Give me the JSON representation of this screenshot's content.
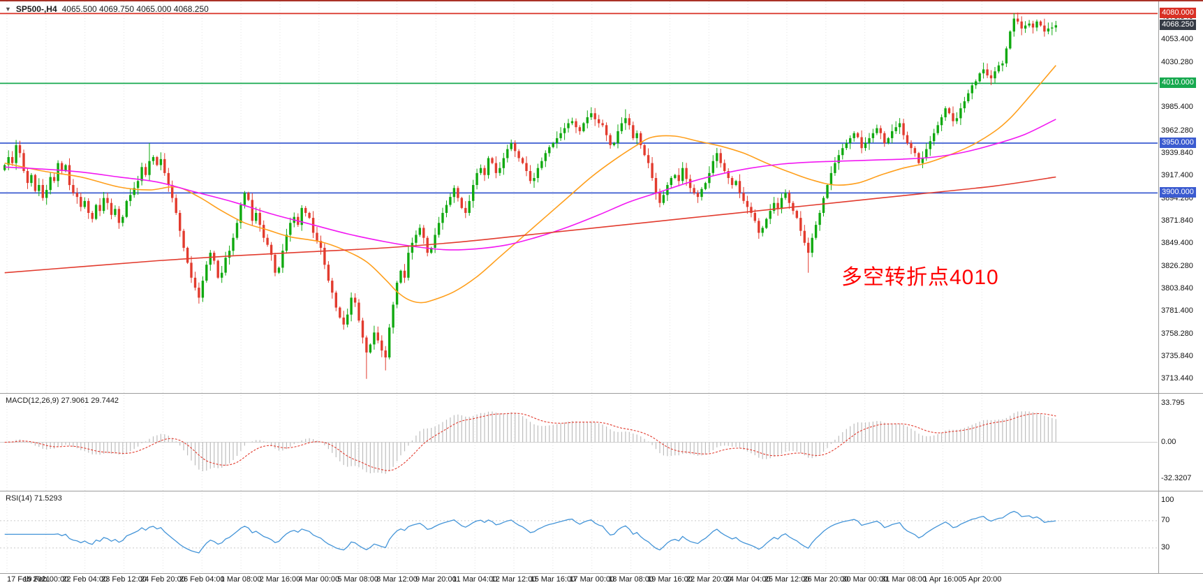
{
  "header": {
    "dropdown_glyph": "▼",
    "symbol_period": "SP500-,H4",
    "ohlc": "4065.500 4069.750 4065.000 4068.250"
  },
  "annotation": {
    "text": "多空转折点4010",
    "color": "#ff0000"
  },
  "chart_data": {
    "type": "candlestick",
    "symbol": "SP500-",
    "timeframe": "H4",
    "last_ohlc": {
      "open": 4065.5,
      "high": 4069.75,
      "low": 4065.0,
      "close": 4068.25
    },
    "up_color": "#10a910",
    "down_color": "#e23b2e",
    "y_axis": {
      "min": 3700,
      "max": 4088,
      "tick_labels": [
        "4075.840",
        "4053.400",
        "4030.280",
        "3985.400",
        "3962.280",
        "3939.840",
        "3917.400",
        "3894.280",
        "3871.840",
        "3849.400",
        "3826.280",
        "3803.840",
        "3781.400",
        "3758.280",
        "3735.840",
        "3713.440"
      ]
    },
    "x_axis": {
      "labels": [
        "17 Feb 2021",
        "19 Feb 00:00",
        "22 Feb 04:00",
        "23 Feb 12:00",
        "24 Feb 20:00",
        "26 Feb 04:00",
        "1 Mar 08:00",
        "2 Mar 16:00",
        "4 Mar 00:00",
        "5 Mar 08:00",
        "8 Mar 12:00",
        "9 Mar 20:00",
        "11 Mar 04:00",
        "12 Mar 12:00",
        "15 Mar 16:00",
        "17 Mar 00:00",
        "18 Mar 08:00",
        "19 Mar 16:00",
        "22 Mar 20:00",
        "24 Mar 04:00",
        "25 Mar 12:00",
        "26 Mar 20:00",
        "30 Mar 00:00",
        "31 Mar 08:00",
        "1 Apr 16:00",
        "5 Apr 20:00"
      ]
    },
    "horizontal_lines": [
      {
        "price": 4080.0,
        "label": "4080.000",
        "color": "#d93025"
      },
      {
        "price": 4010.0,
        "label": "4010.000",
        "color": "#17a94f"
      },
      {
        "price": 3950.0,
        "label": "3950.000",
        "color": "#3b5bd0"
      },
      {
        "price": 3900.0,
        "label": "3900.000",
        "color": "#3b5bd0"
      }
    ],
    "current_price": {
      "value": 4068.25,
      "label": "4068.250",
      "bg": "#363b45"
    },
    "closes": [
      3928,
      3936,
      3930,
      3948,
      3940,
      3922,
      3910,
      3918,
      3902,
      3908,
      3895,
      3903,
      3916,
      3912,
      3930,
      3922,
      3928,
      3908,
      3900,
      3896,
      3886,
      3892,
      3880,
      3874,
      3888,
      3882,
      3895,
      3890,
      3878,
      3884,
      3870,
      3876,
      3892,
      3898,
      3905,
      3912,
      3926,
      3918,
      3932,
      3936,
      3928,
      3934,
      3920,
      3908,
      3895,
      3880,
      3862,
      3845,
      3830,
      3815,
      3805,
      3795,
      3812,
      3828,
      3840,
      3832,
      3815,
      3820,
      3835,
      3842,
      3855,
      3870,
      3888,
      3900,
      3893,
      3872,
      3880,
      3868,
      3855,
      3848,
      3838,
      3820,
      3825,
      3842,
      3858,
      3870,
      3876,
      3868,
      3885,
      3880,
      3875,
      3860,
      3852,
      3845,
      3828,
      3812,
      3800,
      3785,
      3775,
      3768,
      3778,
      3795,
      3790,
      3772,
      3755,
      3740,
      3748,
      3760,
      3752,
      3742,
      3735,
      3765,
      3788,
      3810,
      3822,
      3815,
      3840,
      3850,
      3858,
      3865,
      3855,
      3840,
      3845,
      3858,
      3870,
      3880,
      3888,
      3896,
      3905,
      3895,
      3885,
      3880,
      3892,
      3908,
      3920,
      3925,
      3918,
      3935,
      3930,
      3920,
      3925,
      3935,
      3944,
      3950,
      3942,
      3935,
      3930,
      3922,
      3912,
      3915,
      3925,
      3932,
      3940,
      3946,
      3950,
      3955,
      3960,
      3965,
      3970,
      3972,
      3966,
      3962,
      3970,
      3976,
      3980,
      3974,
      3970,
      3968,
      3958,
      3948,
      3950,
      3962,
      3970,
      3975,
      3968,
      3955,
      3960,
      3948,
      3938,
      3930,
      3915,
      3900,
      3890,
      3898,
      3908,
      3915,
      3918,
      3912,
      3925,
      3914,
      3905,
      3900,
      3896,
      3904,
      3910,
      3920,
      3932,
      3940,
      3930,
      3922,
      3915,
      3908,
      3912,
      3900,
      3892,
      3886,
      3880,
      3872,
      3860,
      3865,
      3874,
      3882,
      3890,
      3884,
      3895,
      3900,
      3890,
      3882,
      3875,
      3862,
      3850,
      3840,
      3855,
      3868,
      3880,
      3895,
      3908,
      3920,
      3930,
      3938,
      3945,
      3950,
      3955,
      3960,
      3956,
      3945,
      3950,
      3955,
      3960,
      3965,
      3960,
      3950,
      3955,
      3962,
      3966,
      3970,
      3958,
      3950,
      3945,
      3940,
      3930,
      3935,
      3944,
      3952,
      3960,
      3968,
      3976,
      3985,
      3980,
      3972,
      3975,
      3985,
      3992,
      4000,
      4008,
      4012,
      4020,
      4024,
      4018,
      4015,
      4022,
      4028,
      4030,
      4045,
      4062,
      4075,
      4072,
      4065,
      4068,
      4070,
      4066,
      4072,
      4068,
      4062,
      4065,
      4066,
      4068.25
    ],
    "wick_overrides": {
      "38": [
        3950,
        null
      ],
      "51": [
        null,
        3789
      ],
      "95": [
        null,
        3713.5
      ],
      "100": [
        null,
        3722
      ],
      "154": [
        3986,
        null
      ],
      "163": [
        3984,
        null
      ],
      "211": [
        null,
        3820
      ],
      "265": [
        4080.5,
        null
      ]
    },
    "ma_lines": [
      {
        "name": "ma-fast-orange",
        "color": "#ff9f1c",
        "points": [
          [
            0,
            3930
          ],
          [
            10,
            3922
          ],
          [
            20,
            3916
          ],
          [
            30,
            3906
          ],
          [
            38,
            3903
          ],
          [
            45,
            3906
          ],
          [
            51,
            3896
          ],
          [
            57,
            3882
          ],
          [
            63,
            3870
          ],
          [
            69,
            3863
          ],
          [
            75,
            3856
          ],
          [
            83,
            3851
          ],
          [
            89,
            3843
          ],
          [
            95,
            3831
          ],
          [
            100,
            3813
          ],
          [
            103,
            3801
          ],
          [
            106,
            3793
          ],
          [
            109,
            3790
          ],
          [
            112,
            3792
          ],
          [
            118,
            3801
          ],
          [
            124,
            3816
          ],
          [
            130,
            3836
          ],
          [
            136,
            3856
          ],
          [
            142,
            3876
          ],
          [
            148,
            3896
          ],
          [
            154,
            3916
          ],
          [
            160,
            3933
          ],
          [
            166,
            3948
          ],
          [
            170,
            3956
          ],
          [
            176,
            3957
          ],
          [
            182,
            3952
          ],
          [
            188,
            3947
          ],
          [
            194,
            3940
          ],
          [
            200,
            3930
          ],
          [
            206,
            3921
          ],
          [
            212,
            3913
          ],
          [
            218,
            3908
          ],
          [
            224,
            3910
          ],
          [
            230,
            3918
          ],
          [
            236,
            3925
          ],
          [
            242,
            3930
          ],
          [
            248,
            3938
          ],
          [
            254,
            3948
          ],
          [
            260,
            3962
          ],
          [
            264,
            3975
          ],
          [
            268,
            3992
          ],
          [
            272,
            4010
          ],
          [
            276,
            4028
          ]
        ]
      },
      {
        "name": "ma-mid-magenta",
        "color": "#f218f2",
        "points": [
          [
            0,
            3926
          ],
          [
            10,
            3924
          ],
          [
            20,
            3921
          ],
          [
            30,
            3916
          ],
          [
            40,
            3911
          ],
          [
            50,
            3901
          ],
          [
            60,
            3891
          ],
          [
            70,
            3879
          ],
          [
            80,
            3869
          ],
          [
            90,
            3859
          ],
          [
            100,
            3851
          ],
          [
            108,
            3846
          ],
          [
            116,
            3843
          ],
          [
            124,
            3844
          ],
          [
            132,
            3848
          ],
          [
            140,
            3856
          ],
          [
            148,
            3866
          ],
          [
            156,
            3878
          ],
          [
            164,
            3891
          ],
          [
            172,
            3901
          ],
          [
            180,
            3911
          ],
          [
            188,
            3919
          ],
          [
            196,
            3925
          ],
          [
            204,
            3929
          ],
          [
            212,
            3931
          ],
          [
            220,
            3932
          ],
          [
            228,
            3933
          ],
          [
            236,
            3934
          ],
          [
            244,
            3936
          ],
          [
            252,
            3941
          ],
          [
            260,
            3949
          ],
          [
            268,
            3959
          ],
          [
            276,
            3974
          ]
        ]
      },
      {
        "name": "ma-slow-red",
        "color": "#e23b2e",
        "points": [
          [
            0,
            3820
          ],
          [
            20,
            3826
          ],
          [
            40,
            3832
          ],
          [
            60,
            3837
          ],
          [
            80,
            3841
          ],
          [
            100,
            3845
          ],
          [
            120,
            3851
          ],
          [
            140,
            3859
          ],
          [
            160,
            3867
          ],
          [
            180,
            3875
          ],
          [
            200,
            3883
          ],
          [
            220,
            3891
          ],
          [
            240,
            3899
          ],
          [
            260,
            3907
          ],
          [
            276,
            3916
          ]
        ]
      }
    ],
    "macd": {
      "label": "MACD(12,26,9) 27.9061 29.7442",
      "fast": 12,
      "slow": 26,
      "signal_period": 9,
      "value": 27.9061,
      "signal_value": 29.7442,
      "scale_labels": [
        "33.795",
        "0.00",
        "-32.3207"
      ],
      "range": [
        -42,
        42
      ],
      "histogram_color": "#bdbdbd",
      "signal_color": "#e23b2e"
    },
    "rsi": {
      "label": "RSI(14) 71.5293",
      "period": 14,
      "value": 71.5293,
      "scale_labels": [
        "100",
        "70",
        "30"
      ],
      "levels": [
        70,
        30
      ],
      "color": "#4394d8",
      "range": [
        -6,
        112
      ]
    }
  }
}
